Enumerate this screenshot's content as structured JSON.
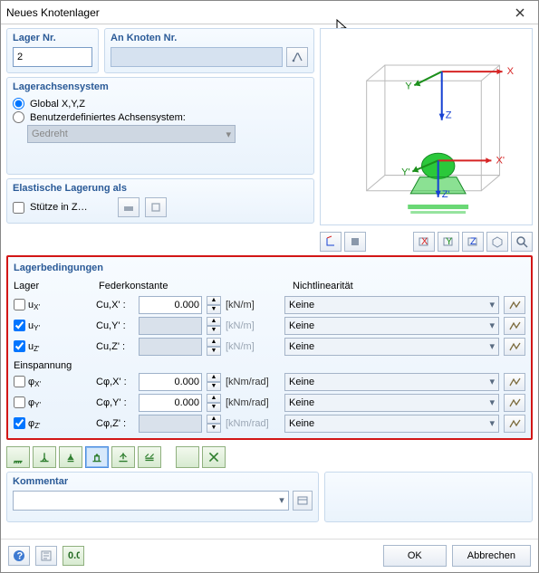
{
  "window": {
    "title": "Neues Knotenlager"
  },
  "top": {
    "lager_nr_label": "Lager Nr.",
    "lager_nr_value": "2",
    "an_knoten_label": "An Knoten Nr.",
    "an_knoten_value": ""
  },
  "axes_panel": {
    "title": "Lagerachsensystem",
    "opt_global": "Global X,Y,Z",
    "opt_user": "Benutzerdefiniertes Achsensystem:",
    "selected": "global",
    "dropdown_value": "Gedreht"
  },
  "elastic": {
    "title": "Elastische Lagerung als",
    "stuetze_label": "Stütze in Z…",
    "stuetze_checked": false
  },
  "preview": {
    "axis_x": "X",
    "axis_y": "Y",
    "axis_z": "Z",
    "axis_xp": "X'",
    "axis_yp": "Y'",
    "axis_zp": "Z'",
    "axis_colors": {
      "x": "#d62424",
      "y": "#1b8f1b",
      "z": "#1641d3"
    },
    "wire_color": "#bcbcbc",
    "support_color": "#2bc83b",
    "support_edge": "#1a8a28"
  },
  "lb": {
    "title": "Lagerbedingungen",
    "head_lager": "Lager",
    "head_fk": "Federkonstante",
    "head_nl": "Nichtlinearität",
    "head_einsp": "Einspannung",
    "unit_force": "[kN/m]",
    "unit_rot": "[kNm/rad]",
    "nl_value": "Keine",
    "rows": [
      {
        "id": "ux",
        "label": "uX'",
        "c_label": "Cu,X' :",
        "checked": false,
        "value": "0.000",
        "enabled": true,
        "unit_key": "unit_force"
      },
      {
        "id": "uy",
        "label": "uY'",
        "c_label": "Cu,Y' :",
        "checked": true,
        "value": "",
        "enabled": false,
        "unit_key": "unit_force"
      },
      {
        "id": "uz",
        "label": "uZ'",
        "c_label": "Cu,Z' :",
        "checked": true,
        "value": "",
        "enabled": false,
        "unit_key": "unit_force"
      }
    ],
    "rot_rows": [
      {
        "id": "phx",
        "label": "φX'",
        "c_label": "Cφ,X' :",
        "checked": false,
        "value": "0.000",
        "enabled": true,
        "unit_key": "unit_rot"
      },
      {
        "id": "phy",
        "label": "φY'",
        "c_label": "Cφ,Y' :",
        "checked": false,
        "value": "0.000",
        "enabled": true,
        "unit_key": "unit_rot"
      },
      {
        "id": "phz",
        "label": "φZ'",
        "c_label": "Cφ,Z' :",
        "checked": true,
        "value": "",
        "enabled": false,
        "unit_key": "unit_rot"
      }
    ]
  },
  "types": {
    "selected_index": 3,
    "count": 8
  },
  "comment": {
    "title": "Kommentar",
    "value": ""
  },
  "footer": {
    "ok": "OK",
    "cancel": "Abbrechen"
  }
}
